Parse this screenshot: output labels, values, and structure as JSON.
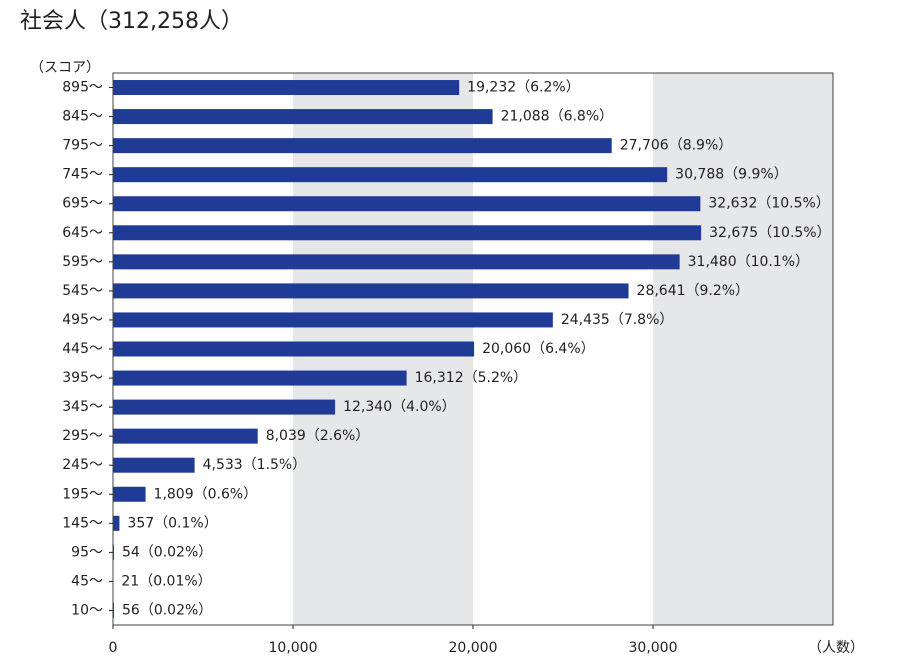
{
  "chart_data": {
    "type": "hbar",
    "title": "社会人（312,258人）",
    "y_label": "（スコア）",
    "x_label": "（人数）",
    "categories": [
      "895～",
      "845～",
      "795～",
      "745～",
      "695～",
      "645～",
      "595～",
      "545～",
      "495～",
      "445～",
      "395～",
      "345～",
      "295～",
      "245～",
      "195～",
      "145～",
      "95～",
      "45～",
      "10～"
    ],
    "values": [
      19232,
      21088,
      27706,
      30788,
      32632,
      32675,
      31480,
      28641,
      24435,
      20060,
      16312,
      12340,
      8039,
      4533,
      1809,
      357,
      54,
      21,
      56
    ],
    "value_labels": [
      "19,232（6.2%）",
      "21,088（6.8%）",
      "27,706（8.9%）",
      "30,788（9.9%）",
      "32,632（10.5%）",
      "32,675（10.5%）",
      "31,480（10.1%）",
      "28,641（9.2%）",
      "24,435（7.8%）",
      "20,060（6.4%）",
      "16,312（5.2%）",
      "12,340（4.0%）",
      "8,039（2.6%）",
      "4,533（1.5%）",
      "1,809（0.6%）",
      "357（0.1%）",
      "54（0.02%）",
      "21（0.01%）",
      "56（0.02%）"
    ],
    "color": "#1f3b95",
    "xlim": [
      0,
      40000
    ],
    "xticks": [
      0,
      {
        "value": 10000,
        "label": "10,000"
      },
      {
        "value": 20000,
        "label": "20,000"
      },
      {
        "value": 30000,
        "label": "30,000"
      }
    ],
    "alternate_shading": true
  }
}
